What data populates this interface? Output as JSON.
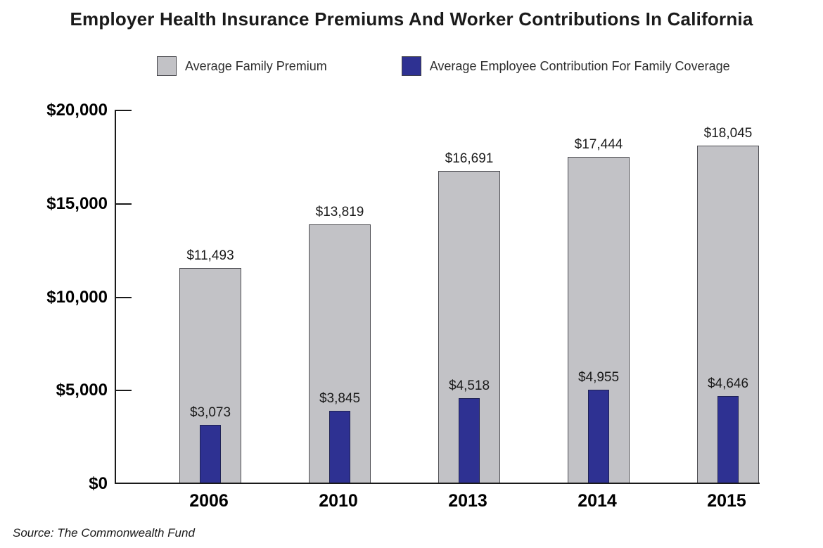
{
  "title": "Employer Health Insurance Premiums And Worker Contributions In California",
  "source": "Source: The Commonwealth Fund",
  "colors": {
    "premium_fill": "#c2c2c6",
    "premium_border": "#4d4d52",
    "contribution_fill": "#2e3192",
    "contribution_border": "#1f2255",
    "axis": "#1a1a1a",
    "text": "#1a1a1a"
  },
  "legend": {
    "items": [
      {
        "label": "Average Family Premium",
        "color": "#c2c2c6"
      },
      {
        "label": "Average Employee Contribution For Family Coverage",
        "color": "#2e3192"
      }
    ]
  },
  "chart_data": {
    "type": "bar",
    "title": "Employer Health Insurance Premiums And Worker Contributions In California",
    "categories": [
      "2006",
      "2010",
      "2013",
      "2014",
      "2015"
    ],
    "series": [
      {
        "name": "Average Family Premium",
        "values": [
          11493,
          13819,
          16691,
          17444,
          18045
        ],
        "value_labels": [
          "$11,493",
          "$13,819",
          "$16,691",
          "$17,444",
          "$18,045"
        ],
        "color": "#c2c2c6"
      },
      {
        "name": "Average Employee Contribution For Family Coverage",
        "values": [
          3073,
          3845,
          4518,
          4955,
          4646
        ],
        "value_labels": [
          "$3,073",
          "$3,845",
          "$4,518",
          "$4,955",
          "$4,646"
        ],
        "color": "#2e3192"
      }
    ],
    "xlabel": "",
    "ylabel": "",
    "ylim": [
      0,
      20000
    ],
    "y_ticks": [
      {
        "value": 0,
        "label": "$0"
      },
      {
        "value": 5000,
        "label": "$5,000"
      },
      {
        "value": 10000,
        "label": "$10,000"
      },
      {
        "value": 15000,
        "label": "$15,000"
      },
      {
        "value": 20000,
        "label": "$20,000"
      }
    ],
    "grid": false,
    "legend_position": "top"
  }
}
